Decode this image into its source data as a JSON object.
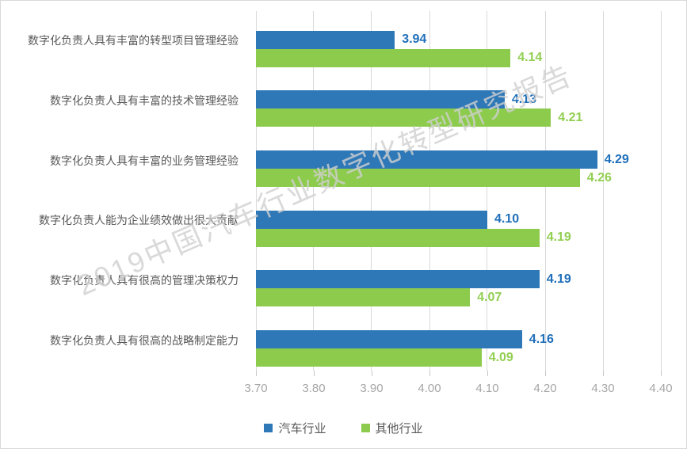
{
  "watermark": "2019中国汽车行业数字化转型研究报告",
  "colors": {
    "auto_industry": "#2e78b8",
    "other_industry": "#8dcb4d",
    "auto_label": "#1f6fba",
    "other_label": "#92cf52",
    "gridline": "#d9d9d9",
    "axis_text": "#a6a6a6",
    "category_text": "#595959"
  },
  "chart_data": {
    "type": "bar",
    "orientation": "horizontal",
    "title": "",
    "xlabel": "",
    "ylabel": "",
    "xlim": [
      3.7,
      4.4
    ],
    "grid": true,
    "legend_position": "bottom",
    "xticks": [
      "3.70",
      "3.80",
      "3.90",
      "4.00",
      "4.10",
      "4.20",
      "4.30",
      "4.40"
    ],
    "categories": [
      "数字化负责人具有丰富的转型项目管理经验",
      "数字化负责人具有丰富的技术管理经验",
      "数字化负责人具有丰富的业务管理经验",
      "数字化负责人能为企业绩效做出很大贡献",
      "数字化负责人具有很高的管理决策权力",
      "数字化负责人具有很高的战略制定能力"
    ],
    "series": [
      {
        "name": "汽车行业",
        "color": "#2e78b8",
        "label_color": "#1f6fba",
        "values": [
          3.94,
          4.13,
          4.29,
          4.1,
          4.19,
          4.16
        ],
        "labels": [
          "3.94",
          "4.13",
          "4.29",
          "4.10",
          "4.19",
          "4.16"
        ]
      },
      {
        "name": "其他行业",
        "color": "#8dcb4d",
        "label_color": "#92cf52",
        "values": [
          4.14,
          4.21,
          4.26,
          4.19,
          4.07,
          4.09
        ],
        "labels": [
          "4.14",
          "4.21",
          "4.26",
          "4.19",
          "4.07",
          "4.09"
        ]
      }
    ]
  }
}
